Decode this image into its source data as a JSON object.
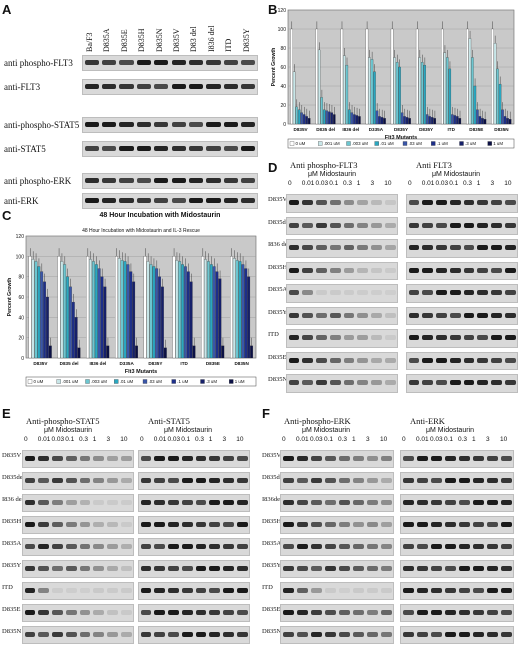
{
  "panel_labels": {
    "A": "A",
    "B": "B",
    "C": "C",
    "D": "D",
    "E": "E",
    "F": "F"
  },
  "panelA": {
    "lanes": [
      "Ba/F3",
      "D835A",
      "D835E",
      "D835H",
      "D835N",
      "D835V",
      "D83 del",
      "I836 del",
      "ITD",
      "D835Y"
    ],
    "rows": [
      "anti phospho-FLT3",
      "anti-FLT3",
      "anti-phospho-STAT5",
      "anti-STAT5",
      "anti phospho-ERK",
      "anti-ERK"
    ]
  },
  "chart_data": [
    {
      "id": "B",
      "type": "bar",
      "title": "",
      "xlabel": "Flt3 Mutants",
      "ylabel": "Percent Growth",
      "ylim": [
        0,
        120
      ],
      "yticks": [
        0,
        20,
        40,
        60,
        80,
        100,
        120
      ],
      "categories": [
        "D835V",
        "D835 del",
        "I836 del",
        "D335A",
        "D835Y",
        "D835Y",
        "ITD",
        "D835E",
        "D835N"
      ],
      "series": [
        {
          "name": "0 uM",
          "color": "#ffffff",
          "values": [
            100,
            100,
            100,
            100,
            100,
            100,
            100,
            100,
            100
          ]
        },
        {
          "name": ".001 uM",
          "color": "#c8e6e8",
          "values": [
            55,
            78,
            72,
            70,
            70,
            70,
            75,
            90,
            85
          ]
        },
        {
          "name": ".003 uM",
          "color": "#6cc6d0",
          "values": [
            18,
            28,
            62,
            68,
            65,
            65,
            70,
            70,
            58
          ]
        },
        {
          "name": ".01 uM",
          "color": "#2aa7c0",
          "values": [
            15,
            15,
            15,
            55,
            60,
            62,
            58,
            40,
            42
          ]
        },
        {
          "name": ".03 uM",
          "color": "#3a56a8",
          "values": [
            12,
            14,
            12,
            14,
            12,
            10,
            10,
            15,
            15
          ]
        },
        {
          "name": ".1 uM",
          "color": "#1d2f8a",
          "values": [
            10,
            13,
            10,
            8,
            8,
            8,
            9,
            8,
            8
          ]
        },
        {
          "name": ".3 uM",
          "color": "#16206a",
          "values": [
            8,
            12,
            9,
            7,
            7,
            7,
            8,
            6,
            6
          ]
        },
        {
          "name": "1 uM",
          "color": "#0b1045",
          "values": [
            6,
            10,
            8,
            6,
            6,
            6,
            6,
            5,
            5
          ]
        }
      ],
      "legend": [
        "0 uM",
        ".001 uM",
        ".003 uM",
        ".01 uM",
        ".03 uM",
        ".1 uM",
        ".3 uM",
        "1 uM"
      ],
      "legend_position": "bottom"
    },
    {
      "id": "C",
      "type": "bar",
      "title": "48 Hour Incubation with Midostaurin and IL-3 Rescue",
      "xlabel": "Flt3 Mutants",
      "ylabel": "Percent Growth",
      "ylim": [
        0,
        120
      ],
      "yticks": [
        0,
        20,
        40,
        60,
        80,
        100,
        120
      ],
      "categories": [
        "D835V",
        "D835 del",
        "I836 del",
        "D335A",
        "D835Y",
        "ITD",
        "D835E",
        "D835N"
      ],
      "series": [
        {
          "name": "0 uM",
          "color": "#ffffff",
          "values": [
            100,
            100,
            100,
            100,
            100,
            100,
            100,
            100
          ]
        },
        {
          "name": ".001 uM",
          "color": "#c8e6e8",
          "values": [
            97,
            95,
            97,
            98,
            95,
            96,
            97,
            98
          ]
        },
        {
          "name": ".003 uM",
          "color": "#6cc6d0",
          "values": [
            95,
            92,
            95,
            96,
            92,
            95,
            95,
            96
          ]
        },
        {
          "name": ".01 uM",
          "color": "#2aa7c0",
          "values": [
            90,
            80,
            92,
            95,
            90,
            92,
            92,
            95
          ]
        },
        {
          "name": ".03 uM",
          "color": "#3a56a8",
          "values": [
            85,
            70,
            88,
            92,
            88,
            90,
            90,
            92
          ]
        },
        {
          "name": ".1 uM",
          "color": "#1d2f8a",
          "values": [
            75,
            55,
            80,
            85,
            80,
            85,
            85,
            88
          ]
        },
        {
          "name": ".3 uM",
          "color": "#16206a",
          "values": [
            60,
            40,
            70,
            75,
            70,
            75,
            78,
            80
          ]
        },
        {
          "name": "1 uM",
          "color": "#0b1045",
          "values": [
            12,
            10,
            12,
            12,
            10,
            12,
            12,
            12
          ]
        }
      ],
      "legend": [
        "0 uM",
        ".001 uM",
        ".003 uM",
        ".01 uM",
        ".03 uM",
        ".1 uM",
        ".3 uM",
        "1 uM"
      ],
      "legend_position": "bottom"
    }
  ],
  "panelC_header": "48 Hour Incubation with Midostaurin",
  "midostaurin": {
    "unit_label": "μM Midostaurin",
    "concentrations": [
      "0",
      "0.01",
      "0.03",
      "0.1",
      "0.3",
      "1",
      "3",
      "10"
    ]
  },
  "panelD": {
    "left_title": "Anti phospho-FLT3",
    "right_title": "Anti FLT3",
    "rows": [
      "D835V",
      "D835del",
      "I836 del",
      "D835H",
      "D835A",
      "D835Y",
      "ITD",
      "D835E",
      "D835N"
    ]
  },
  "panelE": {
    "left_title": "Anti-phospho-STAT5",
    "right_title": "Anti-STAT5",
    "rows": [
      "D835V",
      "D835del",
      "I836 del",
      "D835H",
      "D835A",
      "D835Y",
      "ITD",
      "D835E",
      "D835N"
    ]
  },
  "panelF": {
    "left_title": "Anti-phospho-ERK",
    "right_title": "Anti-ERK",
    "rows": [
      "D835V",
      "D835del",
      "I836del",
      "D835H",
      "D835A",
      "D835Y",
      "ITD",
      "D835E",
      "D835N"
    ]
  }
}
